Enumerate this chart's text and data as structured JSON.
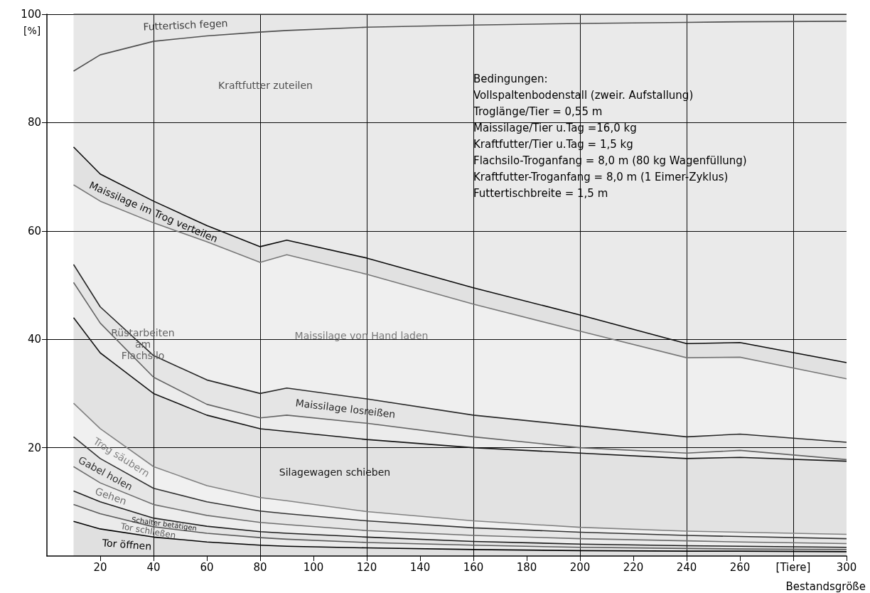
{
  "chart_data": {
    "type": "area",
    "stacked": true,
    "ylabel": "[%]",
    "xlabel": "Bestandsgröße",
    "x": [
      10,
      20,
      40,
      60,
      80,
      90,
      120,
      160,
      200,
      240,
      260,
      300
    ],
    "xlim": [
      0,
      300
    ],
    "xticks": [
      20,
      40,
      60,
      80,
      100,
      120,
      140,
      160,
      180,
      200,
      220,
      240,
      260,
      {
        "value": 280,
        "label": "[Tiere]"
      },
      300
    ],
    "ylim": [
      0,
      100
    ],
    "yticks": [
      20,
      40,
      60,
      80,
      100
    ],
    "grid": true,
    "series": [
      {
        "name": "Tor öffnen",
        "color": "#000000",
        "values": [
          6.4,
          5.0,
          3.5,
          2.6,
          2.0,
          1.8,
          1.5,
          1.2,
          1.0,
          0.9,
          0.9,
          0.8
        ]
      },
      {
        "name": "Tor schließen",
        "color": "#5a5a5a",
        "values": [
          3.1,
          2.8,
          1.9,
          1.6,
          1.4,
          1.3,
          1.0,
          0.8,
          0.6,
          0.5,
          0.4,
          0.4
        ]
      },
      {
        "name": "Schalter betätigen",
        "color": "#1e1e1e",
        "values": [
          2.5,
          2.2,
          1.6,
          1.3,
          1.1,
          1.1,
          1.0,
          0.7,
          0.6,
          0.5,
          0.5,
          0.4
        ]
      },
      {
        "name": "Gehen",
        "color": "#6e6e6e",
        "values": [
          4.5,
          3.5,
          2.5,
          2.0,
          1.7,
          1.6,
          1.2,
          1.1,
          1.0,
          0.9,
          0.8,
          0.7
        ]
      },
      {
        "name": "Gabel holen",
        "color": "#323232",
        "values": [
          5.5,
          4.5,
          3.0,
          2.5,
          2.1,
          2.0,
          1.8,
          1.4,
          1.2,
          1.0,
          1.0,
          0.9
        ]
      },
      {
        "name": "Trog säubern",
        "color": "#828282",
        "values": [
          6.2,
          5.5,
          4.0,
          3.0,
          2.5,
          2.4,
          1.7,
          1.3,
          0.9,
          0.8,
          0.8,
          0.8
        ]
      },
      {
        "name": "Silagewagen schieben",
        "color": "#141414",
        "values": [
          15.8,
          14.0,
          13.5,
          13.0,
          12.7,
          12.8,
          13.3,
          13.5,
          13.7,
          13.4,
          13.8,
          13.5
        ]
      },
      {
        "name": "Rüstarbeiten am Flachsilo",
        "color": "#646464",
        "values": [
          6.5,
          5.5,
          3.0,
          2.0,
          2.0,
          3.0,
          3.0,
          2.0,
          1.0,
          1.0,
          1.3,
          0.3
        ]
      },
      {
        "name": "Maissilage losreißen",
        "color": "#282828",
        "values": [
          3.3,
          3.0,
          4.0,
          4.5,
          4.5,
          5.0,
          4.5,
          4.0,
          4.0,
          3.0,
          3.0,
          3.2
        ]
      },
      {
        "name": "Maissilage von Hand laden",
        "color": "#787878",
        "values": [
          14.7,
          19.5,
          24.5,
          25.5,
          24.2,
          24.6,
          23.0,
          20.5,
          17.5,
          14.6,
          14.2,
          11.7
        ]
      },
      {
        "name": "Maissilage im Trog verteilen",
        "color": "#0a0a0a",
        "values": [
          7.0,
          5.0,
          4.0,
          3.0,
          2.9,
          2.7,
          3.0,
          3.0,
          3.0,
          2.6,
          2.7,
          3.0
        ]
      },
      {
        "name": "Kraftfutter zuteilen",
        "color": "#505050",
        "values": [
          14.0,
          22.0,
          29.5,
          35.0,
          39.6,
          38.7,
          42.6,
          48.5,
          53.8,
          59.3,
          59.2,
          63.0
        ]
      },
      {
        "name": "Futtertisch fegen",
        "color": "#3c3c3c",
        "values": [
          10.5,
          7.5,
          5.0,
          4.0,
          3.3,
          3.0,
          2.4,
          2.0,
          1.7,
          1.5,
          1.4,
          1.3
        ]
      }
    ],
    "annotations": [
      "Bedingungen:",
      "Vollspaltenbodenstall (zweir. Aufstallung)",
      "Troglänge/Tier = 0,55 m",
      "Maissilage/Tier u.Tag =16,0 kg",
      "Kraftfutter/Tier u.Tag = 1,5 kg",
      "Flachsilo-Troganfang = 8,0 m (80 kg Wagenfüllung)",
      "Kraftfutter-Troganfang = 8,0 m (1 Eimer-Zyklus)",
      "Futtertischbreite = 1,5 m"
    ]
  }
}
